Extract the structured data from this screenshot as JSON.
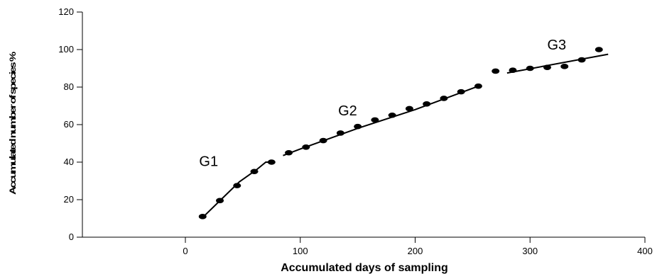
{
  "chart_data": {
    "type": "scatter",
    "title": "",
    "xlabel": "Accumulated days of sampling",
    "ylabel": "Accumulated number of species %",
    "xlim": [
      -90,
      400
    ],
    "ylim": [
      0,
      120
    ],
    "x_ticks": [
      0,
      100,
      200,
      300,
      400
    ],
    "y_ticks": [
      0,
      20,
      40,
      60,
      80,
      100,
      120
    ],
    "grid": false,
    "legend": "none",
    "point_color": "#000000",
    "line_color": "#000000",
    "series": [
      {
        "points": [
          {
            "x": 15,
            "y": 11
          },
          {
            "x": 30,
            "y": 19.5
          },
          {
            "x": 45,
            "y": 27.5
          },
          {
            "x": 60,
            "y": 35
          },
          {
            "x": 75,
            "y": 40
          },
          {
            "x": 90,
            "y": 45
          },
          {
            "x": 105,
            "y": 48
          },
          {
            "x": 120,
            "y": 51.5
          },
          {
            "x": 135,
            "y": 55.5
          },
          {
            "x": 150,
            "y": 59
          },
          {
            "x": 165,
            "y": 62.5
          },
          {
            "x": 180,
            "y": 65
          },
          {
            "x": 195,
            "y": 68.5
          },
          {
            "x": 210,
            "y": 71
          },
          {
            "x": 225,
            "y": 74
          },
          {
            "x": 240,
            "y": 77.5
          },
          {
            "x": 255,
            "y": 80.5
          },
          {
            "x": 270,
            "y": 88.5
          },
          {
            "x": 285,
            "y": 89
          },
          {
            "x": 300,
            "y": 90
          },
          {
            "x": 315,
            "y": 90.5
          },
          {
            "x": 330,
            "y": 91
          },
          {
            "x": 345,
            "y": 94.5
          },
          {
            "x": 360,
            "y": 100
          }
        ]
      }
    ],
    "fit_lines": [
      {
        "label": "G1",
        "points": [
          [
            15,
            10.5
          ],
          [
            31,
            20
          ],
          [
            47,
            29.5
          ],
          [
            62,
            36
          ],
          [
            70,
            40
          ],
          [
            75,
            40
          ]
        ]
      },
      {
        "label": "G2",
        "points": [
          [
            85,
            43.5
          ],
          [
            100,
            47
          ],
          [
            150,
            58
          ],
          [
            200,
            68
          ],
          [
            255,
            80.5
          ]
        ]
      },
      {
        "label": "G3",
        "points": [
          [
            280,
            87.5
          ],
          [
            368,
            97.5
          ]
        ]
      }
    ],
    "annotations": [
      {
        "text": "G1",
        "x": 12,
        "y": 38
      },
      {
        "text": "G2",
        "x": 133,
        "y": 65
      },
      {
        "text": "G3",
        "x": 315,
        "y": 100
      }
    ]
  }
}
